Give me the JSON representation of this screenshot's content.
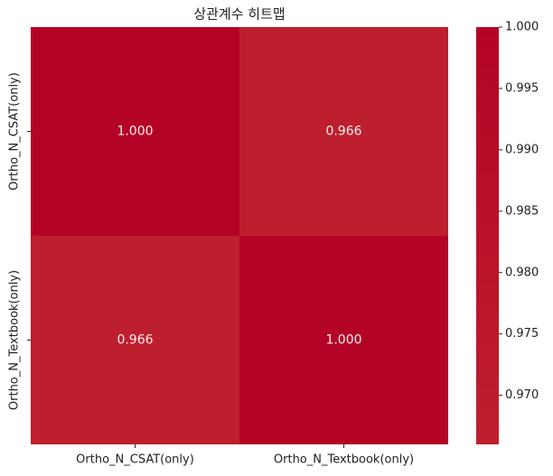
{
  "chart_data": {
    "type": "heatmap",
    "title": "상관계수 히트맵",
    "rows": [
      "Ortho_N_CSAT(only)",
      "Ortho_N_Textbook(only)"
    ],
    "columns": [
      "Ortho_N_CSAT(only)",
      "Ortho_N_Textbook(only)"
    ],
    "values": [
      [
        1.0,
        0.966
      ],
      [
        0.966,
        1.0
      ]
    ],
    "value_labels": [
      [
        "1.000",
        "0.966"
      ],
      [
        "0.966",
        "1.000"
      ]
    ],
    "clim": [
      0.966,
      1.0
    ],
    "colormap": [
      "#be1f2e",
      "#b40426"
    ],
    "cticks": [
      {
        "value": 0.97,
        "label": "0.970"
      },
      {
        "value": 0.975,
        "label": "0.975"
      },
      {
        "value": 0.98,
        "label": "0.980"
      },
      {
        "value": 0.985,
        "label": "0.985"
      },
      {
        "value": 0.99,
        "label": "0.990"
      },
      {
        "value": 0.995,
        "label": "0.995"
      },
      {
        "value": 1.0,
        "label": "1.000"
      }
    ]
  }
}
